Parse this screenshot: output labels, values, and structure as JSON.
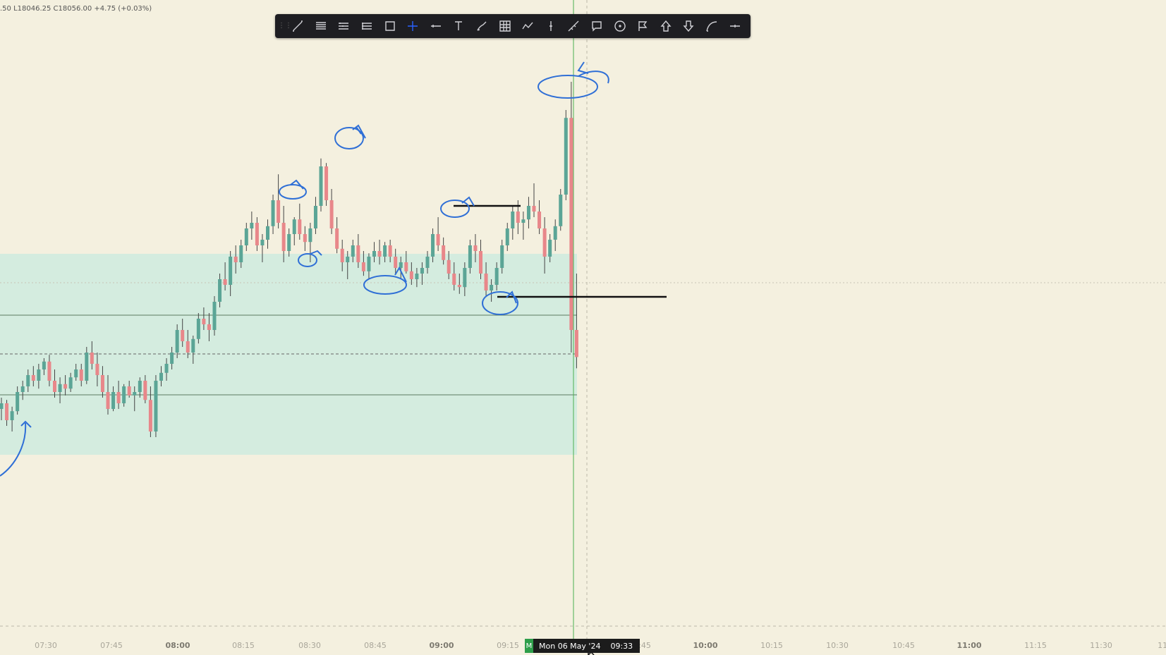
{
  "ohlc_readout": ".50 L18046.25 C18056.00 +4.75 (+0.03%)",
  "toolbar": {
    "tools": [
      {
        "name": "trend-line-icon",
        "label": "Trend line"
      },
      {
        "name": "horizontal-lines-icon",
        "label": "Lines"
      },
      {
        "name": "parallel-channel-icon",
        "label": "Channel"
      },
      {
        "name": "fib-retracement-icon",
        "label": "Fib"
      },
      {
        "name": "rectangle-icon",
        "label": "Rectangle"
      },
      {
        "name": "crosshair-icon",
        "label": "Crosshair",
        "active": true
      },
      {
        "name": "horizontal-ray-icon",
        "label": "Ray"
      },
      {
        "name": "text-icon",
        "label": "Text"
      },
      {
        "name": "brush-icon",
        "label": "Brush"
      },
      {
        "name": "grid-icon",
        "label": "Table"
      },
      {
        "name": "path-icon",
        "label": "Path"
      },
      {
        "name": "vertical-line-icon",
        "label": "Vertical line"
      },
      {
        "name": "extended-line-icon",
        "label": "Extended line"
      },
      {
        "name": "callout-icon",
        "label": "Callout"
      },
      {
        "name": "circle-icon",
        "label": "Circle"
      },
      {
        "name": "flag-icon",
        "label": "Flag"
      },
      {
        "name": "arrow-up-icon",
        "label": "Arrow up"
      },
      {
        "name": "arrow-down-icon",
        "label": "Arrow down"
      },
      {
        "name": "curve-icon",
        "label": "Curve"
      },
      {
        "name": "more-icon",
        "label": "More"
      }
    ]
  },
  "time_axis": {
    "labels": [
      {
        "text": "07:30",
        "bold": false
      },
      {
        "text": "07:45",
        "bold": false
      },
      {
        "text": "08:00",
        "bold": true
      },
      {
        "text": "08:15",
        "bold": false
      },
      {
        "text": "08:30",
        "bold": false
      },
      {
        "text": "08:45",
        "bold": false
      },
      {
        "text": "09:00",
        "bold": true
      },
      {
        "text": "09:15",
        "bold": false
      },
      {
        "text": "09:45",
        "bold": false
      },
      {
        "text": "10:00",
        "bold": true
      },
      {
        "text": "10:15",
        "bold": false
      },
      {
        "text": "10:30",
        "bold": false
      },
      {
        "text": "10:45",
        "bold": false
      },
      {
        "text": "11:00",
        "bold": true
      },
      {
        "text": "11:15",
        "bold": false
      },
      {
        "text": "11:30",
        "bold": false
      },
      {
        "text": "11:",
        "bold": false
      }
    ],
    "crosshair": {
      "marker": "M",
      "date": "Mon 06 May '24",
      "time": "09:33"
    }
  },
  "colors": {
    "background": "#f4f0df",
    "zone": "#d4ecdf",
    "bull": "#5ba596",
    "bear": "#e8878a",
    "annotation": "#2f6fd6",
    "green_line": "#4caf50"
  },
  "candles": [
    [
      18010,
      18020,
      18000,
      18015
    ],
    [
      18015,
      18018,
      17995,
      18000
    ],
    [
      18000,
      18012,
      17990,
      18008
    ],
    [
      18008,
      18030,
      18005,
      18025
    ],
    [
      18025,
      18035,
      18018,
      18030
    ],
    [
      18030,
      18045,
      18025,
      18040
    ],
    [
      18040,
      18048,
      18030,
      18035
    ],
    [
      18035,
      18050,
      18028,
      18045
    ],
    [
      18045,
      18055,
      18040,
      18052
    ],
    [
      18052,
      18058,
      18030,
      18035
    ],
    [
      18035,
      18045,
      18020,
      18025
    ],
    [
      18025,
      18038,
      18015,
      18032
    ],
    [
      18032,
      18040,
      18022,
      18028
    ],
    [
      18028,
      18042,
      18025,
      18038
    ],
    [
      18038,
      18050,
      18035,
      18045
    ],
    [
      18045,
      18050,
      18030,
      18035
    ],
    [
      18035,
      18065,
      18032,
      18060
    ],
    [
      18060,
      18070,
      18045,
      18050
    ],
    [
      18050,
      18060,
      18030,
      18040
    ],
    [
      18040,
      18048,
      18020,
      18025
    ],
    [
      18025,
      18040,
      18005,
      18010
    ],
    [
      18010,
      18030,
      18008,
      18025
    ],
    [
      18025,
      18035,
      18010,
      18015
    ],
    [
      18015,
      18032,
      18012,
      18030
    ],
    [
      18030,
      18035,
      18020,
      18022
    ],
    [
      18022,
      18030,
      18008,
      18025
    ],
    [
      18025,
      18038,
      18020,
      18035
    ],
    [
      18035,
      18040,
      18015,
      18018
    ],
    [
      18018,
      18030,
      17985,
      17990
    ],
    [
      17990,
      18040,
      17985,
      18035
    ],
    [
      18035,
      18048,
      18030,
      18042
    ],
    [
      18042,
      18055,
      18035,
      18050
    ],
    [
      18050,
      18065,
      18045,
      18060
    ],
    [
      18060,
      18085,
      18055,
      18080
    ],
    [
      18080,
      18090,
      18065,
      18070
    ],
    [
      18070,
      18080,
      18055,
      18060
    ],
    [
      18060,
      18075,
      18050,
      18072
    ],
    [
      18072,
      18095,
      18068,
      18090
    ],
    [
      18090,
      18100,
      18080,
      18085
    ],
    [
      18085,
      18095,
      18070,
      18080
    ],
    [
      18080,
      18110,
      18075,
      18105
    ],
    [
      18105,
      18130,
      18100,
      18125
    ],
    [
      18125,
      18140,
      18115,
      18120
    ],
    [
      18120,
      18150,
      18110,
      18145
    ],
    [
      18145,
      18155,
      18130,
      18140
    ],
    [
      18140,
      18160,
      18135,
      18155
    ],
    [
      18155,
      18175,
      18150,
      18170
    ],
    [
      18170,
      18185,
      18160,
      18175
    ],
    [
      18175,
      18180,
      18150,
      18155
    ],
    [
      18155,
      18165,
      18140,
      18160
    ],
    [
      18160,
      18178,
      18152,
      18172
    ],
    [
      18172,
      18200,
      18165,
      18195
    ],
    [
      18195,
      18218,
      18170,
      18175
    ],
    [
      18175,
      18190,
      18140,
      18150
    ],
    [
      18150,
      18170,
      18145,
      18165
    ],
    [
      18165,
      18180,
      18155,
      18178
    ],
    [
      18178,
      18192,
      18160,
      18165
    ],
    [
      18165,
      18172,
      18150,
      18158
    ],
    [
      18158,
      18175,
      18140,
      18170
    ],
    [
      18170,
      18198,
      18165,
      18190
    ],
    [
      18190,
      18232,
      18185,
      18225
    ],
    [
      18225,
      18228,
      18190,
      18195
    ],
    [
      18195,
      18205,
      18165,
      18170
    ],
    [
      18170,
      18180,
      18148,
      18152
    ],
    [
      18152,
      18160,
      18132,
      18140
    ],
    [
      18140,
      18150,
      18125,
      18145
    ],
    [
      18145,
      18160,
      18140,
      18155
    ],
    [
      18155,
      18165,
      18135,
      18140
    ],
    [
      18140,
      18150,
      18128,
      18132
    ],
    [
      18132,
      18148,
      18125,
      18145
    ],
    [
      18145,
      18158,
      18140,
      18150
    ],
    [
      18150,
      18160,
      18138,
      18145
    ],
    [
      18145,
      18158,
      18140,
      18155
    ],
    [
      18155,
      18160,
      18140,
      18145
    ],
    [
      18145,
      18152,
      18130,
      18135
    ],
    [
      18135,
      18145,
      18125,
      18140
    ],
    [
      18140,
      18150,
      18130,
      18132
    ],
    [
      18132,
      18140,
      18120,
      18125
    ],
    [
      18125,
      18135,
      18118,
      18130
    ],
    [
      18130,
      18140,
      18120,
      18135
    ],
    [
      18135,
      18150,
      18130,
      18145
    ],
    [
      18145,
      18170,
      18140,
      18165
    ],
    [
      18165,
      18180,
      18150,
      18155
    ],
    [
      18155,
      18162,
      18138,
      18142
    ],
    [
      18142,
      18150,
      18125,
      18130
    ],
    [
      18130,
      18140,
      18115,
      18120
    ],
    [
      18120,
      18130,
      18112,
      18118
    ],
    [
      18118,
      18140,
      18110,
      18135
    ],
    [
      18135,
      18160,
      18130,
      18155
    ],
    [
      18155,
      18165,
      18140,
      18150
    ],
    [
      18150,
      18160,
      18125,
      18130
    ],
    [
      18130,
      18140,
      18110,
      18115
    ],
    [
      18115,
      18125,
      18105,
      18120
    ],
    [
      18120,
      18140,
      18115,
      18135
    ],
    [
      18135,
      18160,
      18130,
      18155
    ],
    [
      18155,
      18175,
      18150,
      18170
    ],
    [
      18170,
      18190,
      18160,
      18185
    ],
    [
      18185,
      18195,
      18165,
      18175
    ],
    [
      18175,
      18185,
      18160,
      18178
    ],
    [
      18178,
      18198,
      18170,
      18190
    ],
    [
      18190,
      18210,
      18180,
      18185
    ],
    [
      18185,
      18195,
      18165,
      18170
    ],
    [
      18170,
      18180,
      18130,
      18145
    ],
    [
      18145,
      18165,
      18140,
      18160
    ],
    [
      18160,
      18178,
      18150,
      18172
    ],
    [
      18172,
      18205,
      18168,
      18200
    ],
    [
      18200,
      18275,
      18195,
      18268
    ],
    [
      18268,
      18300,
      18060,
      18080
    ],
    [
      18080,
      18130,
      18046,
      18056
    ]
  ],
  "ohlc_price_range": [
    17960,
    18310
  ]
}
